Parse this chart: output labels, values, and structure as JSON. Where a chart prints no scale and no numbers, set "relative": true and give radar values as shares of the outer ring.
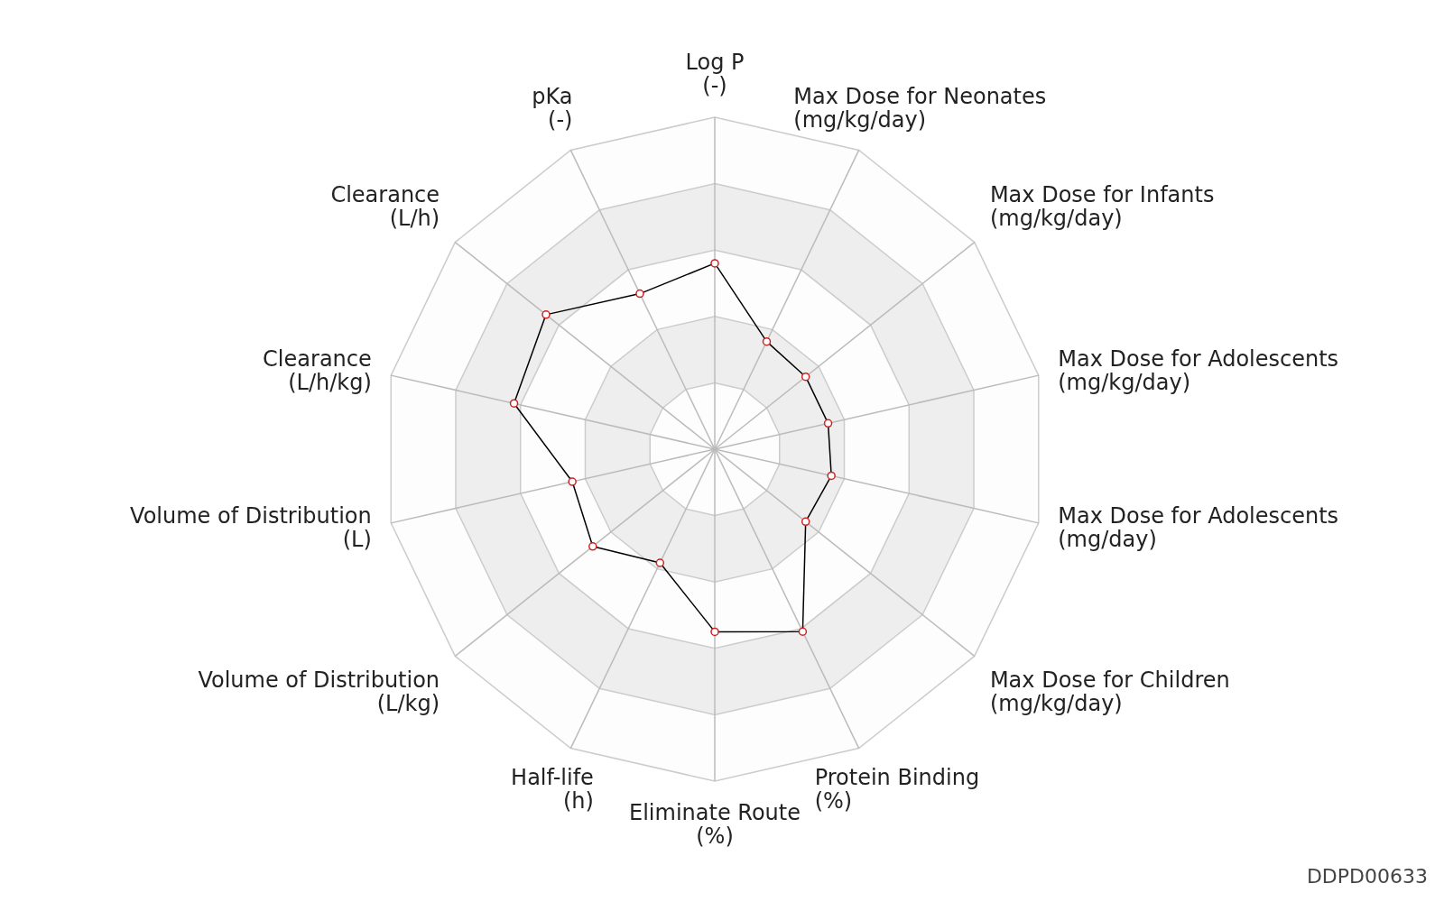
{
  "chart_data": {
    "type": "radar",
    "relative": true,
    "grid": true,
    "marker": "circle",
    "legend": false,
    "categories": [
      "Log P\n(-)",
      "Max Dose for Neonates\n(mg/kg/day)",
      "Max Dose for Infants\n(mg/kg/day)",
      "Max Dose for Adolescents\n(mg/kg/day)",
      "Max Dose for Adolescents\n(mg/day)",
      "Max Dose for Children\n(mg/kg/day)",
      "Protein Binding\n(%)",
      "Eliminate Route\n(%)",
      "Half-life\n(h)",
      "Volume of Distribution\n(L/kg)",
      "Volume of Distribution\n(L)",
      "Clearance\n(L/h/kg)",
      "Clearance\n(L/h)",
      "pKa\n(-)"
    ],
    "series": [
      {
        "color": "#000000",
        "values": [
          0.56,
          0.36,
          0.35,
          0.35,
          0.36,
          0.35,
          0.61,
          0.55,
          0.38,
          0.47,
          0.44,
          0.62,
          0.65,
          0.52
        ]
      }
    ],
    "annotations": [
      "DDPD00633"
    ]
  }
}
